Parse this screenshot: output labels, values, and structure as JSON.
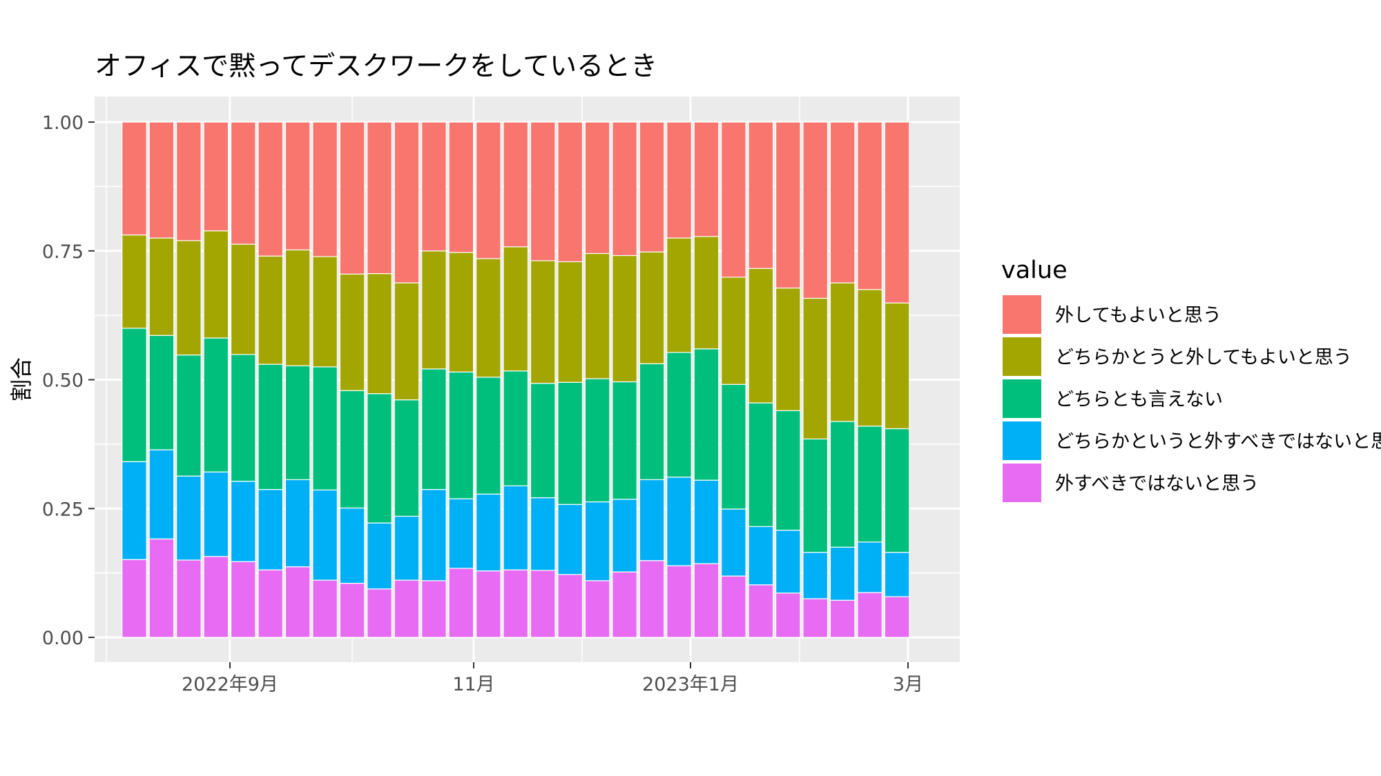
{
  "chart_data": {
    "type": "bar",
    "stacked": true,
    "title": "オフィスで黙ってデスクワークをしているとき",
    "xlabel": "",
    "ylabel": "割合",
    "ylim": [
      0,
      1
    ],
    "y_ticks": [
      "0.00",
      "0.25",
      "0.50",
      "0.75",
      "1.00"
    ],
    "x_tick_labels": [
      "2022年9月",
      "11月",
      "2023年1月",
      "3月"
    ],
    "grid": true,
    "legend": {
      "title": "value",
      "placement": "right"
    },
    "categories": [
      "1",
      "2",
      "3",
      "4",
      "5",
      "6",
      "7",
      "8",
      "9",
      "10",
      "11",
      "12",
      "13",
      "14",
      "15",
      "16",
      "17",
      "18",
      "19",
      "20",
      "21",
      "22",
      "23",
      "24",
      "25",
      "26",
      "27",
      "28",
      "29"
    ],
    "series": [
      {
        "name": "外すべきではないと思う",
        "color": "#E76BF3",
        "values": [
          0.151,
          0.191,
          0.15,
          0.157,
          0.147,
          0.131,
          0.137,
          0.111,
          0.105,
          0.094,
          0.111,
          0.11,
          0.134,
          0.129,
          0.131,
          0.13,
          0.122,
          0.11,
          0.127,
          0.149,
          0.139,
          0.143,
          0.119,
          0.102,
          0.086,
          0.075,
          0.072,
          0.087,
          0.079
        ]
      },
      {
        "name": "どちらかというと外すべきではないと思う",
        "color": "#00B0F6",
        "values": [
          0.19,
          0.173,
          0.163,
          0.164,
          0.156,
          0.156,
          0.169,
          0.175,
          0.146,
          0.128,
          0.124,
          0.177,
          0.135,
          0.149,
          0.163,
          0.141,
          0.136,
          0.153,
          0.141,
          0.157,
          0.172,
          0.162,
          0.13,
          0.113,
          0.122,
          0.09,
          0.103,
          0.098,
          0.086
        ]
      },
      {
        "name": "どちらとも言えない",
        "color": "#00BF7D",
        "values": [
          0.259,
          0.222,
          0.235,
          0.26,
          0.246,
          0.243,
          0.221,
          0.239,
          0.228,
          0.251,
          0.226,
          0.234,
          0.246,
          0.227,
          0.223,
          0.222,
          0.237,
          0.239,
          0.228,
          0.225,
          0.242,
          0.255,
          0.242,
          0.24,
          0.232,
          0.22,
          0.244,
          0.225,
          0.24
        ]
      },
      {
        "name": "どちらかとうと外してもよいと思う",
        "color": "#A3A500",
        "values": [
          0.181,
          0.189,
          0.222,
          0.208,
          0.214,
          0.21,
          0.225,
          0.214,
          0.226,
          0.233,
          0.227,
          0.229,
          0.232,
          0.23,
          0.241,
          0.238,
          0.234,
          0.243,
          0.245,
          0.217,
          0.222,
          0.218,
          0.208,
          0.261,
          0.238,
          0.273,
          0.269,
          0.265,
          0.244
        ]
      },
      {
        "name": "外してもよいと思う",
        "color": "#F8766D",
        "values": [
          0.219,
          0.225,
          0.23,
          0.211,
          0.237,
          0.26,
          0.248,
          0.261,
          0.295,
          0.294,
          0.312,
          0.25,
          0.253,
          0.265,
          0.242,
          0.269,
          0.271,
          0.255,
          0.259,
          0.252,
          0.225,
          0.222,
          0.301,
          0.284,
          0.322,
          0.342,
          0.312,
          0.325,
          0.351
        ]
      }
    ]
  }
}
